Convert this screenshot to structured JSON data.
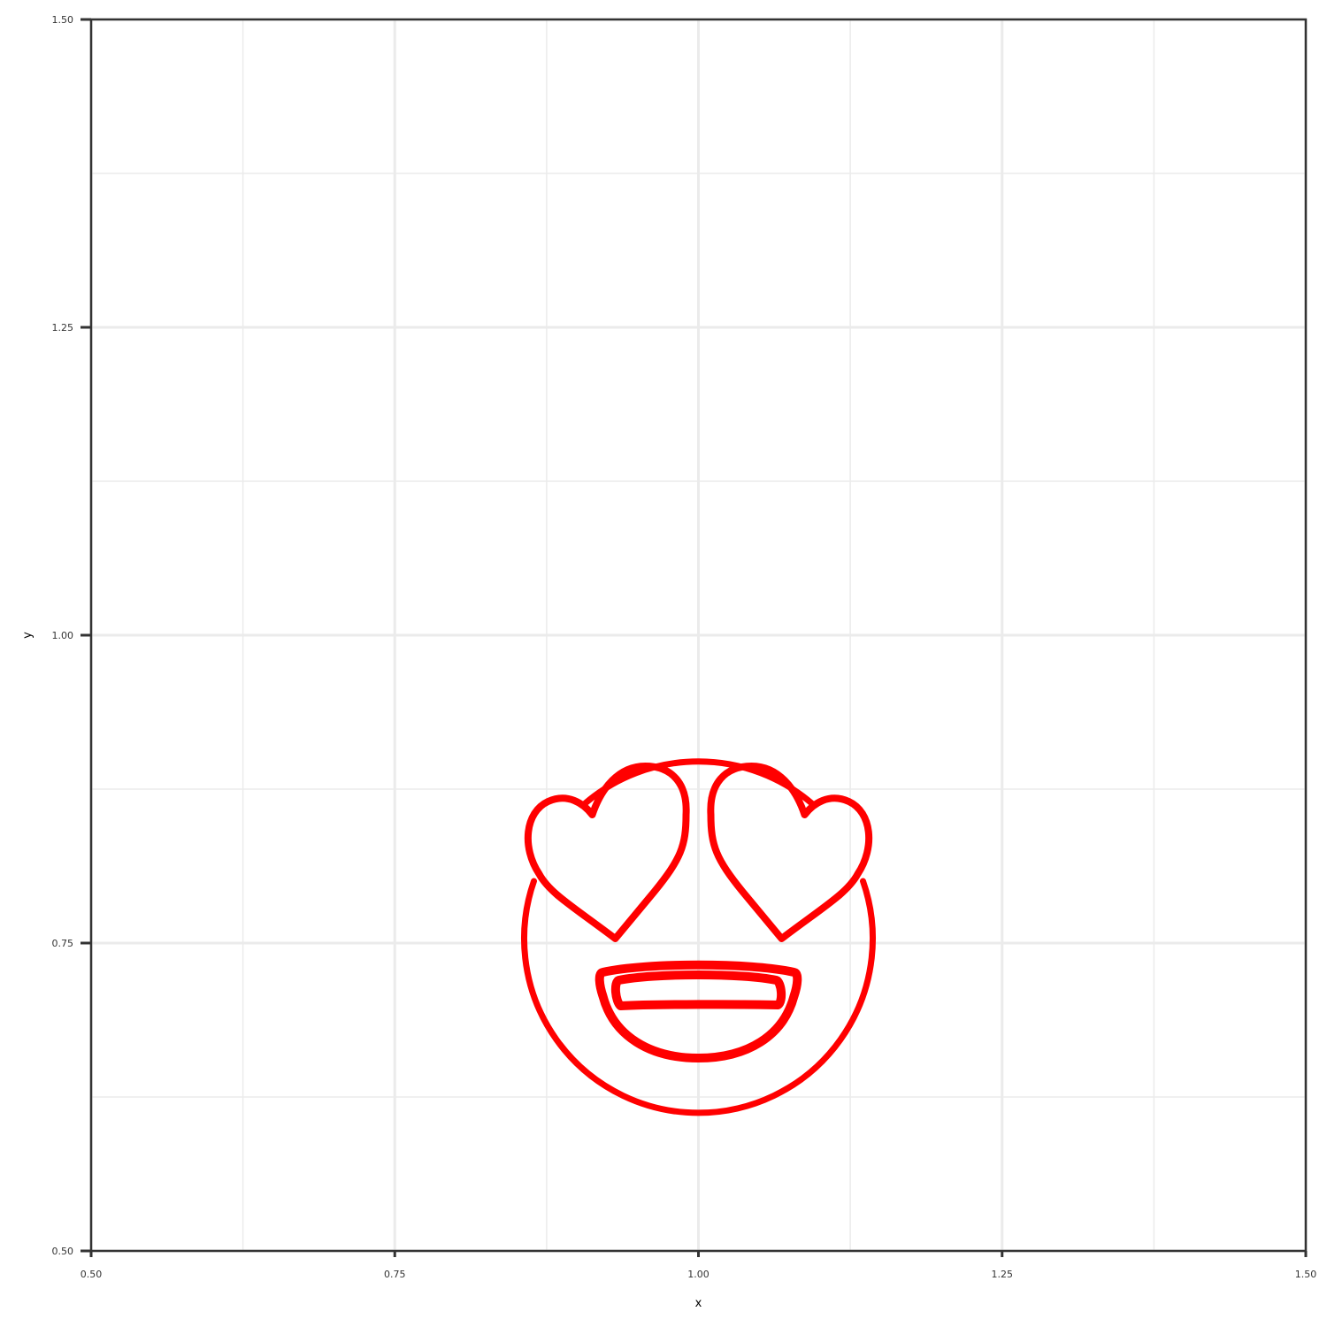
{
  "chart_data": {
    "type": "scatter",
    "title": "",
    "xlabel": "x",
    "ylabel": "y",
    "xlim": [
      0.5,
      1.5
    ],
    "ylim": [
      0.5,
      1.5
    ],
    "x_ticks": [
      0.5,
      0.75,
      1.0,
      1.25,
      1.5
    ],
    "y_ticks": [
      0.5,
      0.75,
      1.0,
      1.25,
      1.5
    ],
    "x_tick_labels": [
      "0.50",
      "0.75",
      "1.00",
      "1.25",
      "1.50"
    ],
    "y_tick_labels": [
      "0.50",
      "0.75",
      "1.00",
      "1.25",
      "1.50"
    ],
    "grid": true,
    "legend": "none",
    "points": [
      {
        "x": 1.0,
        "y": 0.75,
        "marker": "smiling-face-with-heart-eyes-icon",
        "color": "#ff0000"
      }
    ]
  }
}
